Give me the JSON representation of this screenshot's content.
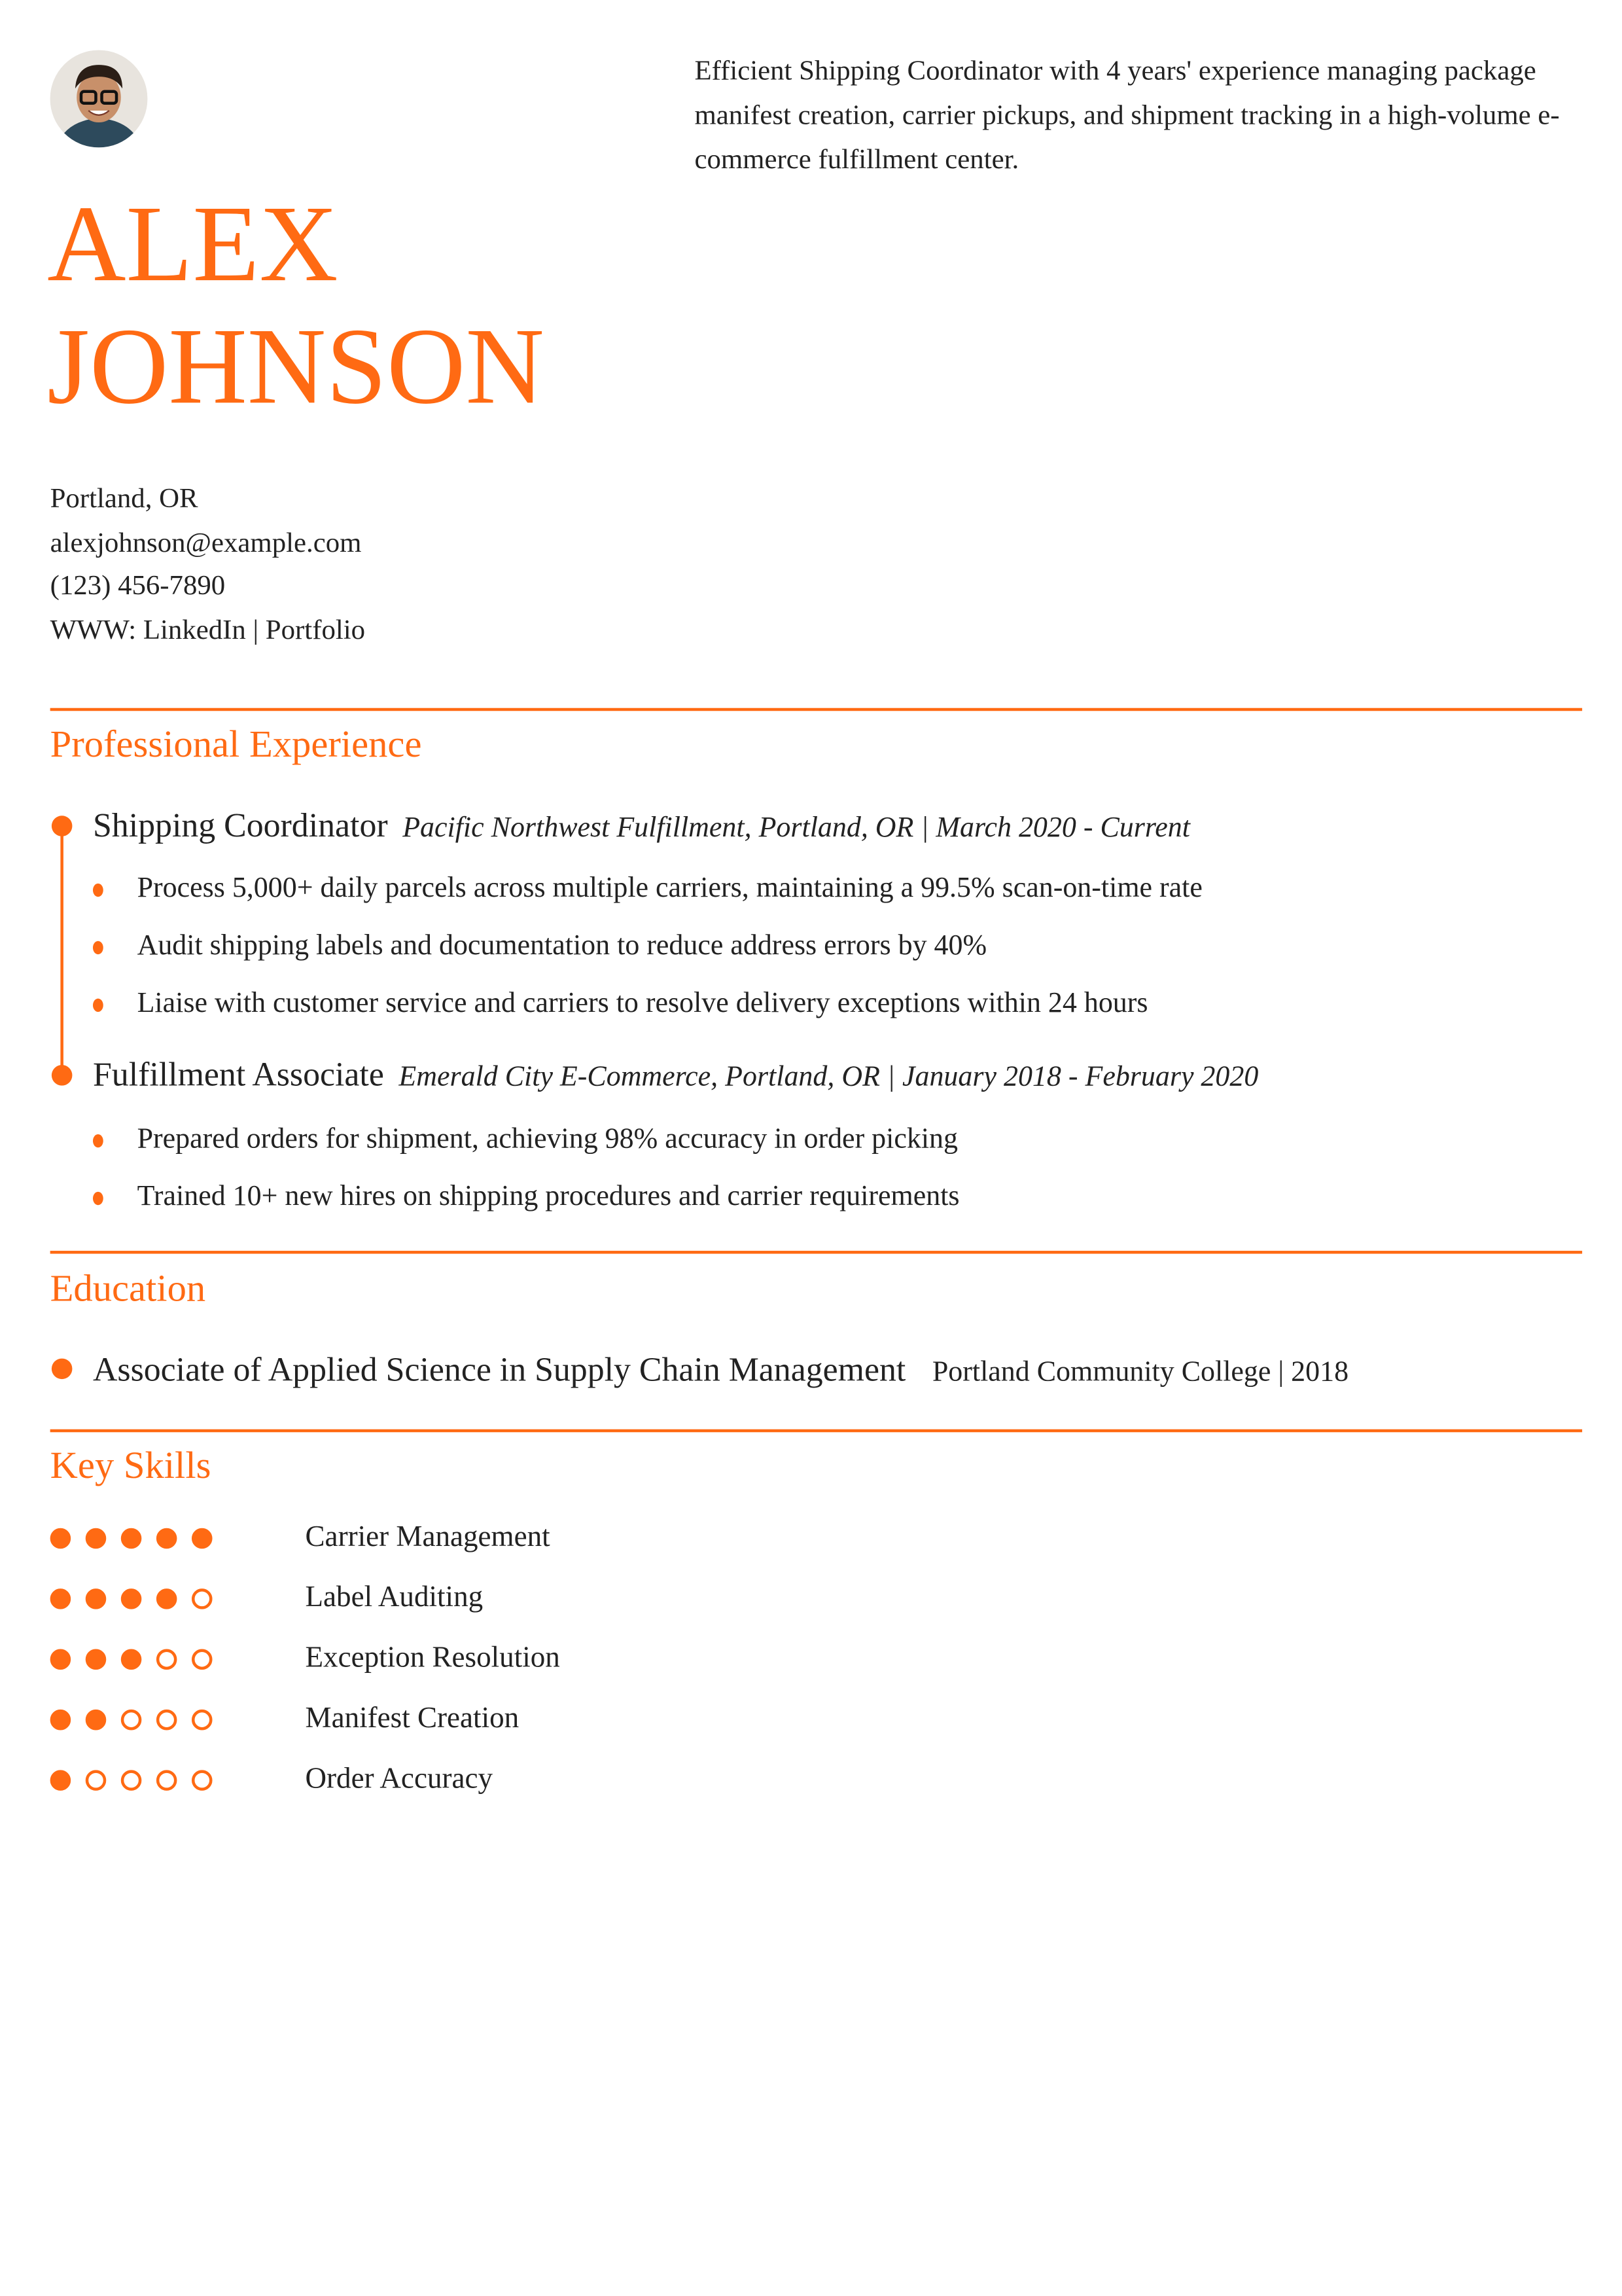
{
  "colors": {
    "accent": "#ff6a13"
  },
  "header": {
    "first_name": "ALEX",
    "last_name": "JOHNSON",
    "photo": "profile-photo",
    "summary": "Efficient Shipping Coordinator with 4 years' experience managing package manifest creation, carrier pickups, and shipment tracking in a high-volume e-commerce fulfillment center.",
    "location": "Portland, OR",
    "email": "alexjohnson@example.com",
    "phone": "(123) 456-7890",
    "web": "WWW: LinkedIn | Portfolio"
  },
  "experience": {
    "title": "Professional Experience",
    "jobs": [
      {
        "role": "Shipping Coordinator",
        "meta": "Pacific Northwest Fulfillment, Portland, OR | March 2020 - Current",
        "bullets": [
          "Process 5,000+ daily parcels across multiple carriers, maintaining a 99.5% scan-on-time rate",
          "Audit shipping labels and documentation to reduce address errors by 40%",
          "Liaise with customer service and carriers to resolve delivery exceptions within 24 hours"
        ]
      },
      {
        "role": "Fulfillment Associate",
        "meta": "Emerald City E-Commerce, Portland, OR | January 2018 - February 2020",
        "bullets": [
          "Prepared orders for shipment, achieving 98% accuracy in order picking",
          "Trained 10+ new hires on shipping procedures and carrier requirements"
        ]
      }
    ]
  },
  "education": {
    "title": "Education",
    "degree": "Associate of Applied Science in Supply Chain Management",
    "school": "Portland Community College | 2018"
  },
  "skills": {
    "title": "Key Skills",
    "items": [
      {
        "name": "Carrier Management",
        "level": 5,
        "max": 5
      },
      {
        "name": "Label Auditing",
        "level": 4,
        "max": 5
      },
      {
        "name": "Exception Resolution",
        "level": 3,
        "max": 5
      },
      {
        "name": "Manifest Creation",
        "level": 2,
        "max": 5
      },
      {
        "name": "Order Accuracy",
        "level": 1,
        "max": 5
      }
    ]
  }
}
